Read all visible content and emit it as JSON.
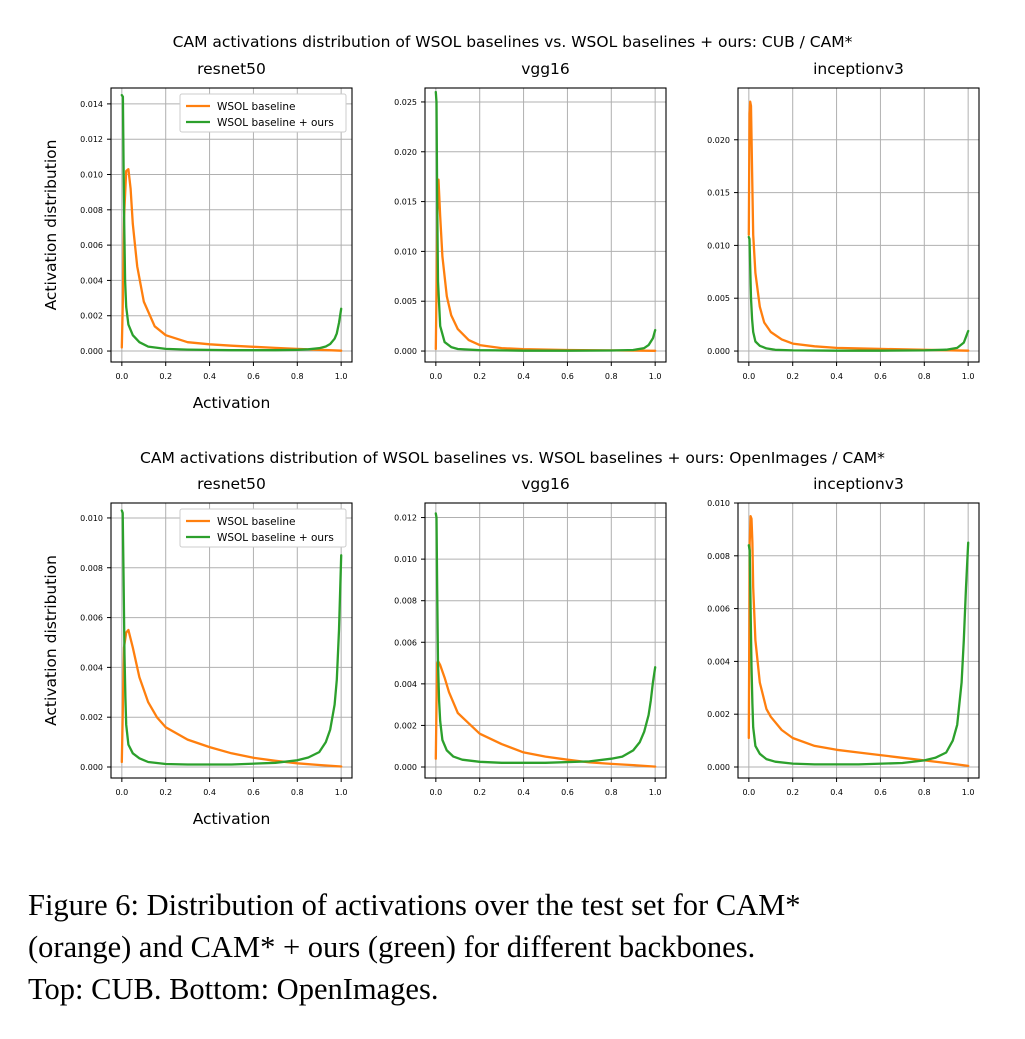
{
  "colors": {
    "baseline": "#ff7f0e",
    "ours": "#2ca02c",
    "grid": "#b0b0b0"
  },
  "caption": {
    "line1": "Figure 6: Distribution of activations over the test set for CAM*",
    "line2": "(orange) and CAM* + ours (green) for different backbones.",
    "line3": "Top: CUB. Bottom: OpenImages."
  },
  "chart_data": [
    {
      "type": "line",
      "suptitle": "CAM activations distribution of WSOL baselines vs. WSOL baselines + ours: CUB / CAM*",
      "title": "resnet50",
      "xlabel": "Activation",
      "ylabel": "Activation distribution",
      "xlim": [
        0,
        1
      ],
      "ylim": [
        0,
        0.0149
      ],
      "grid": true,
      "legend": "top-right",
      "xticks": [
        "0.0",
        "0.2",
        "0.4",
        "0.6",
        "0.8",
        "1.0"
      ],
      "yticks": [
        "0.000",
        "0.002",
        "0.004",
        "0.006",
        "0.008",
        "0.010",
        "0.012",
        "0.014"
      ],
      "series": [
        {
          "name": "WSOL baseline",
          "color": "#ff7f0e",
          "x": [
            0,
            0.005,
            0.01,
            0.02,
            0.03,
            0.04,
            0.05,
            0.07,
            0.1,
            0.15,
            0.2,
            0.3,
            0.4,
            0.5,
            0.6,
            0.7,
            0.8,
            0.9,
            1.0
          ],
          "y": [
            0.0002,
            0.003,
            0.0075,
            0.0102,
            0.0103,
            0.0092,
            0.0072,
            0.0048,
            0.0028,
            0.0014,
            0.0009,
            0.0005,
            0.00038,
            0.0003,
            0.00024,
            0.00018,
            0.00012,
            7e-05,
            2e-05
          ]
        },
        {
          "name": "WSOL baseline + ours",
          "color": "#2ca02c",
          "x": [
            0,
            0.005,
            0.01,
            0.015,
            0.02,
            0.03,
            0.05,
            0.08,
            0.12,
            0.2,
            0.3,
            0.5,
            0.7,
            0.8,
            0.85,
            0.9,
            0.93,
            0.95,
            0.97,
            0.98,
            0.99,
            1.0
          ],
          "y": [
            0.0145,
            0.0144,
            0.008,
            0.004,
            0.0025,
            0.0015,
            0.0009,
            0.0005,
            0.00025,
            0.00012,
            8e-05,
            5e-05,
            5e-05,
            7e-05,
            0.0001,
            0.00016,
            0.00026,
            0.0004,
            0.0007,
            0.001,
            0.0016,
            0.0024
          ]
        }
      ]
    },
    {
      "type": "line",
      "title": "vgg16",
      "xlim": [
        0,
        1
      ],
      "ylim": [
        0,
        0.0264
      ],
      "grid": true,
      "xticks": [
        "0.0",
        "0.2",
        "0.4",
        "0.6",
        "0.8",
        "1.0"
      ],
      "yticks": [
        "0.000",
        "0.005",
        "0.010",
        "0.015",
        "0.020",
        "0.025"
      ],
      "series": [
        {
          "name": "WSOL baseline",
          "color": "#ff7f0e",
          "x": [
            0,
            0.003,
            0.007,
            0.012,
            0.02,
            0.03,
            0.05,
            0.07,
            0.1,
            0.15,
            0.2,
            0.3,
            0.4,
            0.6,
            0.8,
            1.0
          ],
          "y": [
            0.0002,
            0.006,
            0.014,
            0.0172,
            0.0135,
            0.0095,
            0.0055,
            0.0036,
            0.0022,
            0.0011,
            0.0006,
            0.0003,
            0.00018,
            0.0001,
            6e-05,
            2e-05
          ]
        },
        {
          "name": "WSOL baseline + ours",
          "color": "#2ca02c",
          "x": [
            0,
            0.003,
            0.006,
            0.01,
            0.02,
            0.04,
            0.07,
            0.1,
            0.2,
            0.4,
            0.6,
            0.8,
            0.9,
            0.95,
            0.97,
            0.99,
            1.0
          ],
          "y": [
            0.026,
            0.025,
            0.015,
            0.007,
            0.0025,
            0.0009,
            0.0004,
            0.0002,
            8e-05,
            3e-05,
            3e-05,
            5e-05,
            0.0001,
            0.0003,
            0.0006,
            0.0013,
            0.0021
          ]
        }
      ]
    },
    {
      "type": "line",
      "title": "inceptionv3",
      "xlim": [
        0,
        1
      ],
      "ylim": [
        0,
        0.0249
      ],
      "grid": true,
      "xticks": [
        "0.0",
        "0.2",
        "0.4",
        "0.6",
        "0.8",
        "1.0"
      ],
      "yticks": [
        "0.000",
        "0.005",
        "0.010",
        "0.015",
        "0.020"
      ],
      "series": [
        {
          "name": "WSOL baseline",
          "color": "#ff7f0e",
          "x": [
            0,
            0.003,
            0.006,
            0.01,
            0.015,
            0.02,
            0.03,
            0.05,
            0.07,
            0.1,
            0.15,
            0.2,
            0.3,
            0.4,
            0.6,
            0.8,
            1.0
          ],
          "y": [
            0.011,
            0.0225,
            0.0236,
            0.0232,
            0.017,
            0.011,
            0.0074,
            0.0042,
            0.0027,
            0.0018,
            0.0011,
            0.0007,
            0.00045,
            0.0003,
            0.0002,
            0.00012,
            3e-05
          ]
        },
        {
          "name": "WSOL baseline + ours",
          "color": "#2ca02c",
          "x": [
            0,
            0.003,
            0.006,
            0.01,
            0.015,
            0.02,
            0.03,
            0.05,
            0.08,
            0.12,
            0.2,
            0.4,
            0.6,
            0.8,
            0.9,
            0.95,
            0.98,
            1.0
          ],
          "y": [
            0.0108,
            0.0106,
            0.008,
            0.005,
            0.003,
            0.0018,
            0.0009,
            0.0005,
            0.00025,
            0.00012,
            6e-05,
            3e-05,
            3e-05,
            6e-05,
            0.00013,
            0.0003,
            0.0008,
            0.0019
          ]
        }
      ]
    },
    {
      "type": "line",
      "suptitle": "CAM activations distribution of WSOL baselines vs. WSOL baselines + ours: OpenImages / CAM*",
      "title": "resnet50",
      "xlabel": "Activation",
      "ylabel": "Activation distribution",
      "xlim": [
        0,
        1
      ],
      "ylim": [
        0,
        0.0106
      ],
      "grid": true,
      "legend": "top-right",
      "xticks": [
        "0.0",
        "0.2",
        "0.4",
        "0.6",
        "0.8",
        "1.0"
      ],
      "yticks": [
        "0.000",
        "0.002",
        "0.004",
        "0.006",
        "0.008",
        "0.010"
      ],
      "series": [
        {
          "name": "WSOL baseline",
          "color": "#ff7f0e",
          "x": [
            0,
            0.005,
            0.01,
            0.02,
            0.03,
            0.05,
            0.08,
            0.12,
            0.16,
            0.2,
            0.3,
            0.4,
            0.5,
            0.6,
            0.7,
            0.8,
            0.9,
            1.0
          ],
          "y": [
            0.0002,
            0.0025,
            0.0048,
            0.0054,
            0.0055,
            0.0048,
            0.0036,
            0.0026,
            0.002,
            0.0016,
            0.0011,
            0.0008,
            0.00055,
            0.00037,
            0.00025,
            0.00015,
            8e-05,
            2e-05
          ]
        },
        {
          "name": "WSOL baseline + ours",
          "color": "#2ca02c",
          "x": [
            0,
            0.004,
            0.008,
            0.012,
            0.016,
            0.02,
            0.03,
            0.05,
            0.08,
            0.12,
            0.2,
            0.3,
            0.5,
            0.7,
            0.8,
            0.85,
            0.9,
            0.93,
            0.95,
            0.97,
            0.98,
            0.99,
            1.0
          ],
          "y": [
            0.0103,
            0.0102,
            0.0075,
            0.0045,
            0.0028,
            0.0017,
            0.0009,
            0.00055,
            0.00035,
            0.0002,
            0.00012,
            0.0001,
            0.0001,
            0.00017,
            0.00027,
            0.00038,
            0.0006,
            0.001,
            0.0015,
            0.0025,
            0.0035,
            0.0055,
            0.0085
          ]
        }
      ]
    },
    {
      "type": "line",
      "title": "vgg16",
      "xlim": [
        0,
        1
      ],
      "ylim": [
        0,
        0.0127
      ],
      "grid": true,
      "xticks": [
        "0.0",
        "0.2",
        "0.4",
        "0.6",
        "0.8",
        "1.0"
      ],
      "yticks": [
        "0.000",
        "0.002",
        "0.004",
        "0.006",
        "0.008",
        "0.010",
        "0.012"
      ],
      "series": [
        {
          "name": "WSOL baseline",
          "color": "#ff7f0e",
          "x": [
            0,
            0.003,
            0.006,
            0.01,
            0.02,
            0.04,
            0.06,
            0.08,
            0.1,
            0.15,
            0.2,
            0.3,
            0.4,
            0.5,
            0.6,
            0.7,
            0.8,
            0.9,
            1.0
          ],
          "y": [
            0.0004,
            0.003,
            0.005,
            0.0051,
            0.0049,
            0.0043,
            0.0036,
            0.0031,
            0.0026,
            0.0021,
            0.0016,
            0.0011,
            0.0007,
            0.0005,
            0.00035,
            0.00022,
            0.00015,
            9e-05,
            2e-05
          ]
        },
        {
          "name": "WSOL baseline + ours",
          "color": "#2ca02c",
          "x": [
            0,
            0.003,
            0.006,
            0.01,
            0.015,
            0.02,
            0.03,
            0.05,
            0.08,
            0.12,
            0.2,
            0.3,
            0.5,
            0.7,
            0.8,
            0.85,
            0.9,
            0.93,
            0.95,
            0.97,
            0.98,
            0.99,
            1.0
          ],
          "y": [
            0.0122,
            0.012,
            0.0085,
            0.005,
            0.0032,
            0.0022,
            0.0013,
            0.0008,
            0.0005,
            0.00035,
            0.00025,
            0.0002,
            0.0002,
            0.00027,
            0.0004,
            0.0005,
            0.0008,
            0.0012,
            0.0017,
            0.0025,
            0.0032,
            0.0041,
            0.0048
          ]
        }
      ]
    },
    {
      "type": "line",
      "title": "inceptionv3",
      "xlim": [
        0,
        1
      ],
      "ylim": [
        0,
        0.01
      ],
      "grid": true,
      "xticks": [
        "0.0",
        "0.2",
        "0.4",
        "0.6",
        "0.8",
        "1.0"
      ],
      "yticks": [
        "0.000",
        "0.002",
        "0.004",
        "0.006",
        "0.008",
        "0.010"
      ],
      "series": [
        {
          "name": "WSOL baseline",
          "color": "#ff7f0e",
          "x": [
            0,
            0.004,
            0.008,
            0.012,
            0.016,
            0.02,
            0.03,
            0.05,
            0.08,
            0.1,
            0.15,
            0.2,
            0.3,
            0.4,
            0.5,
            0.6,
            0.7,
            0.8,
            0.9,
            1.0
          ],
          "y": [
            0.0011,
            0.0085,
            0.0095,
            0.0094,
            0.0085,
            0.0068,
            0.0048,
            0.0032,
            0.0022,
            0.0019,
            0.0014,
            0.0011,
            0.0008,
            0.00065,
            0.00055,
            0.00045,
            0.00035,
            0.00025,
            0.00015,
            4e-05
          ]
        },
        {
          "name": "WSOL baseline + ours",
          "color": "#2ca02c",
          "x": [
            0,
            0.004,
            0.008,
            0.012,
            0.016,
            0.02,
            0.03,
            0.05,
            0.08,
            0.12,
            0.2,
            0.3,
            0.5,
            0.7,
            0.8,
            0.85,
            0.9,
            0.93,
            0.95,
            0.97,
            0.98,
            0.99,
            1.0
          ],
          "y": [
            0.0084,
            0.0082,
            0.006,
            0.0038,
            0.0024,
            0.0015,
            0.0008,
            0.0005,
            0.0003,
            0.0002,
            0.00013,
            0.0001,
            0.0001,
            0.00015,
            0.00025,
            0.00035,
            0.00055,
            0.001,
            0.0016,
            0.0032,
            0.0048,
            0.0068,
            0.0085
          ]
        }
      ]
    }
  ]
}
